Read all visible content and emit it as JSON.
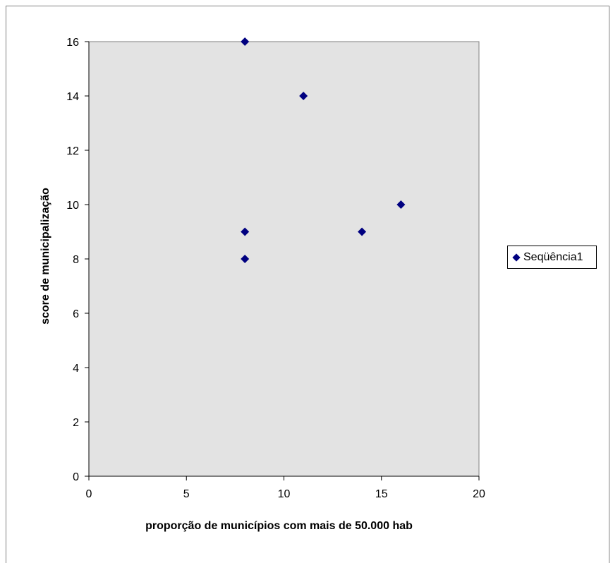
{
  "chart_data": {
    "type": "scatter",
    "xlabel": "proporção de municípios com mais de 50.000 hab",
    "ylabel": "score de municipalização",
    "xlim": [
      0,
      20
    ],
    "ylim": [
      0,
      16
    ],
    "x_ticks": [
      "0",
      "5",
      "10",
      "15",
      "20"
    ],
    "y_ticks": [
      "0",
      "2",
      "4",
      "6",
      "8",
      "10",
      "12",
      "14",
      "16"
    ],
    "grid": false,
    "plot_background": "#e3e3e3",
    "marker_color": "#000080",
    "marker_shape": "diamond",
    "legend_position": "right",
    "series": [
      {
        "name": "Seqüência1",
        "points": [
          {
            "x": 8,
            "y": 16
          },
          {
            "x": 11,
            "y": 14
          },
          {
            "x": 16,
            "y": 10
          },
          {
            "x": 8,
            "y": 9
          },
          {
            "x": 14,
            "y": 9
          },
          {
            "x": 8,
            "y": 8
          }
        ]
      }
    ]
  }
}
